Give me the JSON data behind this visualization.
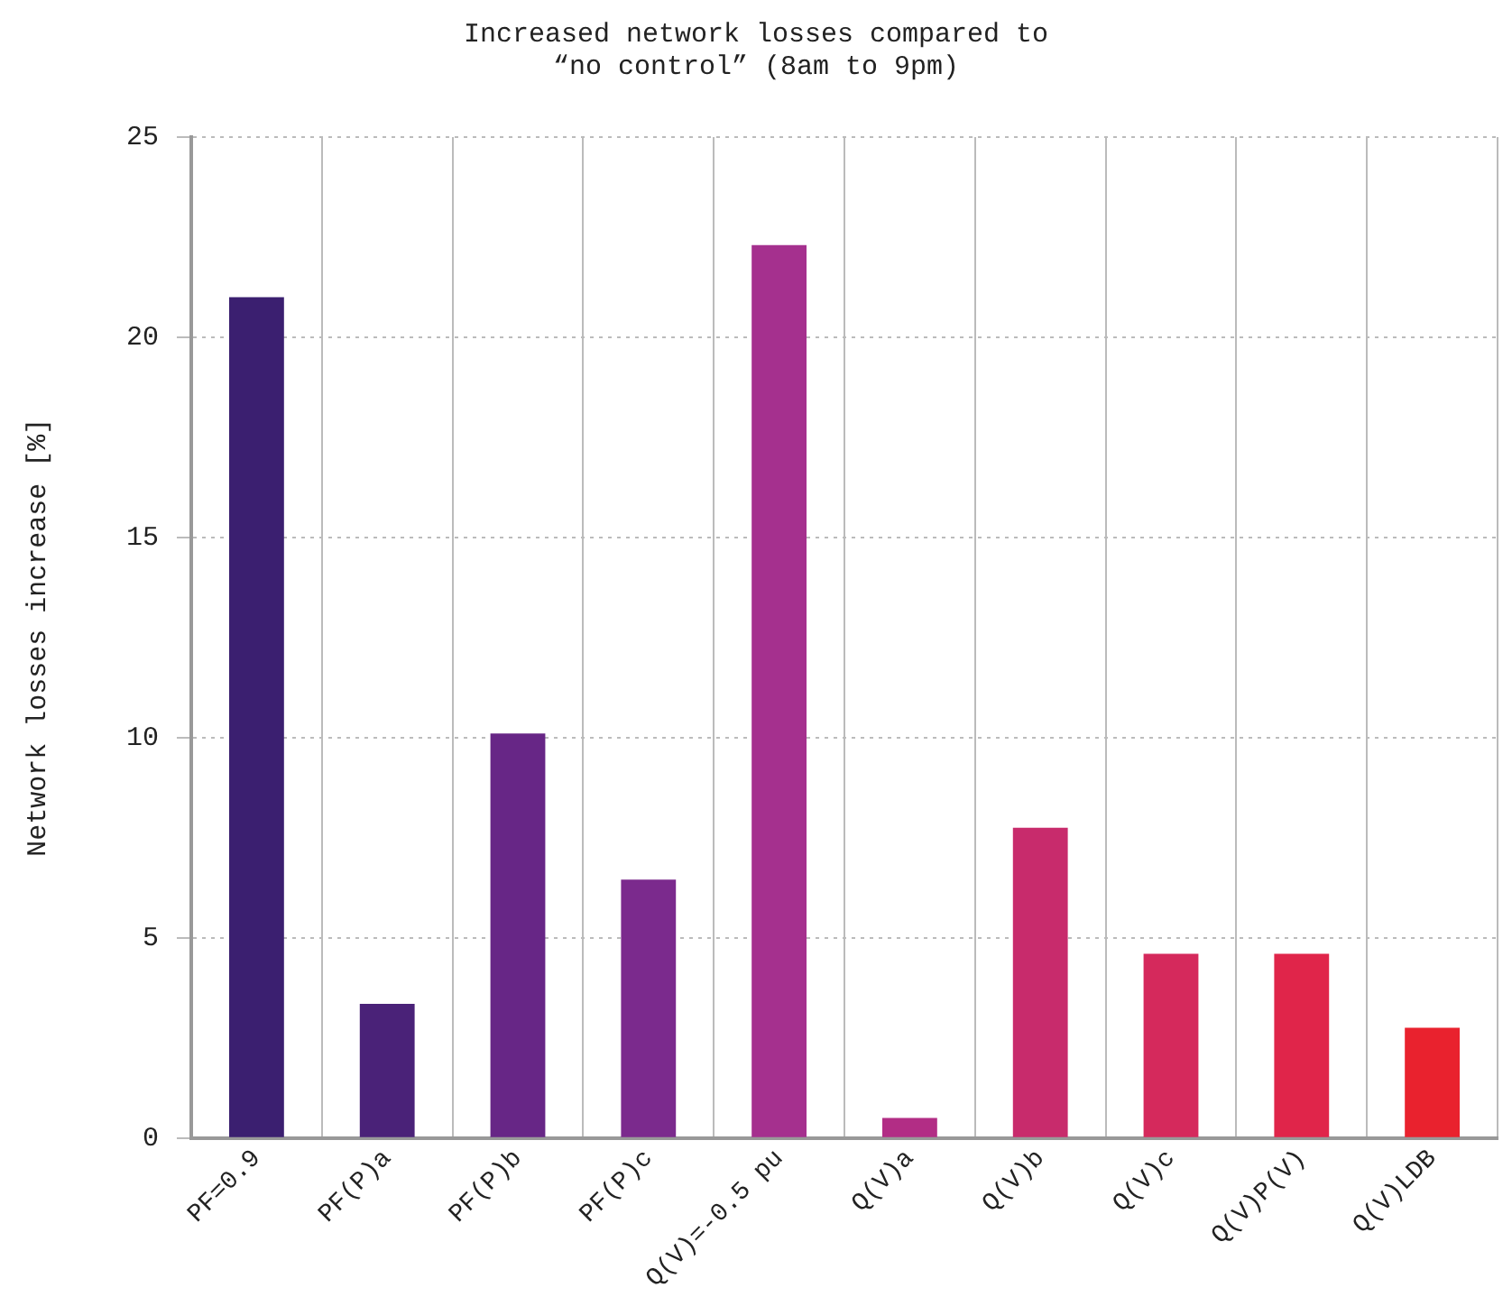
{
  "chart_data": {
    "type": "bar",
    "title": "Increased network losses compared to\n“no control” (8am to 9pm)",
    "ylabel": "Network losses increase [%]",
    "categories": [
      "PF=0.9",
      "PF(P)a",
      "PF(P)b",
      "PF(P)c",
      "Q(V)=-0.5 pu",
      "Q(V)a",
      "Q(V)b",
      "Q(V)c",
      "Q(V)P(V)",
      "Q(V)LDB"
    ],
    "values": [
      21.0,
      3.35,
      10.1,
      6.45,
      22.3,
      0.5,
      7.75,
      4.6,
      4.6,
      2.75
    ],
    "colors": [
      "#3b1f70",
      "#4a2278",
      "#672686",
      "#7b2a8d",
      "#a5308e",
      "#b22d85",
      "#c82b6c",
      "#d5295c",
      "#e0254a",
      "#e9222e"
    ],
    "ylim": [
      0,
      25
    ],
    "yticks": [
      0,
      5,
      10,
      15,
      20,
      25
    ],
    "grid": true,
    "legend": false
  }
}
